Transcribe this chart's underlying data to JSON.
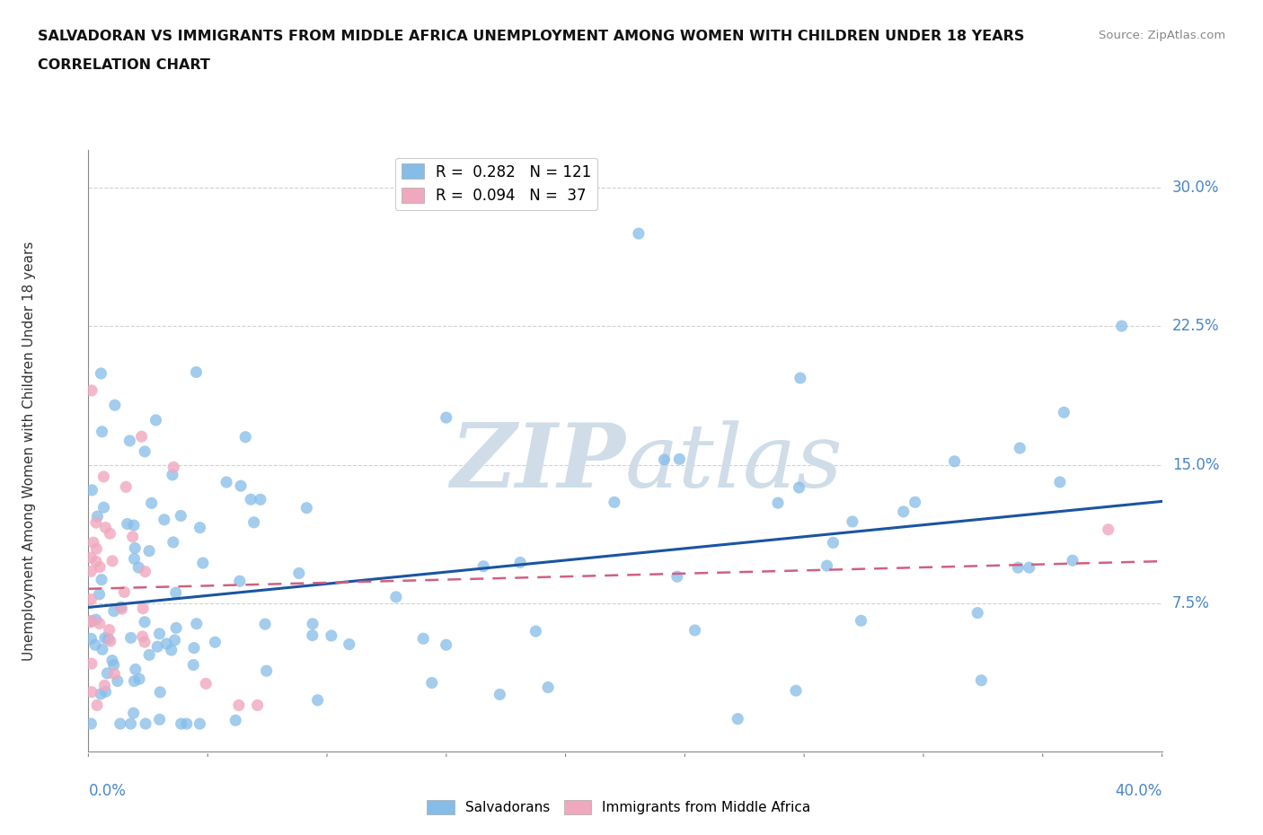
{
  "title_line1": "SALVADORAN VS IMMIGRANTS FROM MIDDLE AFRICA UNEMPLOYMENT AMONG WOMEN WITH CHILDREN UNDER 18 YEARS",
  "title_line2": "CORRELATION CHART",
  "source": "Source: ZipAtlas.com",
  "xlabel_min": "0.0%",
  "xlabel_max": "40.0%",
  "ylabel": "Unemployment Among Women with Children Under 18 years",
  "xlim": [
    0.0,
    0.4
  ],
  "ylim": [
    -0.005,
    0.32
  ],
  "yticks": [
    0.075,
    0.15,
    0.225,
    0.3
  ],
  "ytick_labels": [
    "7.5%",
    "15.0%",
    "22.5%",
    "30.0%"
  ],
  "salvadoran_color": "#85bce8",
  "middle_africa_color": "#f0a8be",
  "salvadoran_R": 0.282,
  "salvadoran_N": 121,
  "middle_africa_R": 0.094,
  "middle_africa_N": 37,
  "salvadoran_line_color": "#1a55a0",
  "middle_africa_line_color": "#d06080",
  "watermark_color": "#d0dde8",
  "background_color": "#ffffff",
  "sal_trend_start_y": 0.065,
  "sal_trend_end_y": 0.125,
  "mid_trend_start_y": 0.075,
  "mid_trend_end_y": 0.115
}
